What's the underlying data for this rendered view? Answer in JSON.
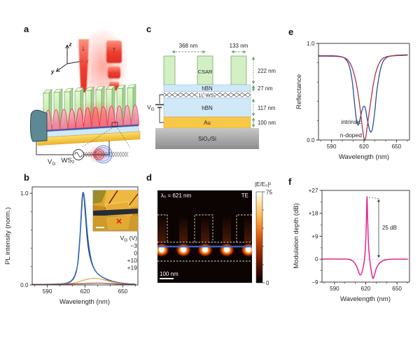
{
  "panels": {
    "a": {
      "label": "a",
      "axes": {
        "z": "z",
        "x": "x",
        "y": "y"
      },
      "icons": {
        "down": "↓",
        "up": "↑"
      },
      "ws2_label": "WS₂",
      "vg": {
        "v": "V",
        "sub": "G"
      }
    },
    "b": {
      "label": "b",
      "legend": {
        "title": {
          "v": "V",
          "sub": "G",
          "rest": " (V)"
        },
        "entries": [
          {
            "label": "−3",
            "color": "#1c2b4f"
          },
          {
            "label": "0",
            "color": "#2f6fc1"
          },
          {
            "label": "+10",
            "color": "#e2a93e"
          },
          {
            "label": "+19",
            "color": "#8e3446"
          }
        ]
      }
    },
    "c": {
      "label": "c",
      "dims": {
        "pitch": "368 nm",
        "width": "133 nm",
        "resist": "222 nm",
        "hbn_top": "27 nm",
        "hbn_bottom": "117 nm",
        "au": "100 nm"
      },
      "layers": {
        "resist": "CSAR",
        "hbn_top": "hBN",
        "ws2": "1L WS₂",
        "hbn_bottom": "hBN",
        "au": "Au",
        "substrate": "SiO₂/Si"
      },
      "vg": {
        "v": "V",
        "sub": "G"
      }
    },
    "d": {
      "label": "d",
      "wavelength_label": "λ₀ = 621 nm",
      "polarization": "TE",
      "scale_bar": "100 nm",
      "colorbar": {
        "label": "|E/E₀|²",
        "max": "75",
        "min": "0"
      }
    },
    "e": {
      "label": "e",
      "curve_labels": {
        "intrinsic": {
          "text": "intrinsic",
          "color": "#2b4c9b"
        },
        "ndoped": {
          "text": "n-doped",
          "color": "#a63748"
        }
      }
    },
    "f": {
      "label": "f",
      "annotation": "25 dB"
    }
  },
  "chart_data": [
    {
      "panel": "b",
      "type": "line",
      "title": "",
      "xlabel": "Wavelength (nm)",
      "ylabel": "PL intensity (norm.)",
      "xlim": [
        578,
        662
      ],
      "ylim": [
        0,
        1.07
      ],
      "xticks": {
        "values": [
          590,
          620,
          650
        ],
        "labels": [
          "590",
          "620",
          "650"
        ]
      },
      "xticks_minor": [
        580,
        600,
        610,
        630,
        640,
        660
      ],
      "yticks": {
        "values": [
          0,
          1
        ],
        "labels": [
          "0.0",
          "1.0"
        ]
      },
      "yticks_minor": [
        0.2,
        0.4,
        0.6,
        0.8
      ],
      "zero_line": false,
      "legend_title": "VG (V)",
      "series": [
        {
          "name": "−3",
          "color": "#1c2b4f",
          "width": 1.2,
          "points": [
            [
              578,
              0.005
            ],
            [
              596,
              0.008
            ],
            [
              604,
              0.015
            ],
            [
              609,
              0.04
            ],
            [
              612,
              0.1
            ],
            [
              614,
              0.22
            ],
            [
              616,
              0.55
            ],
            [
              617.5,
              0.92
            ],
            [
              618.3,
              1.01
            ],
            [
              619.2,
              0.95
            ],
            [
              620.5,
              0.72
            ],
            [
              622,
              0.47
            ],
            [
              624,
              0.3
            ],
            [
              627,
              0.18
            ],
            [
              631,
              0.11
            ],
            [
              636,
              0.07
            ],
            [
              642,
              0.04
            ],
            [
              650,
              0.018
            ],
            [
              660,
              0.008
            ]
          ]
        },
        {
          "name": "0",
          "color": "#2f6fc1",
          "width": 1.4,
          "points": [
            [
              578,
              0.005
            ],
            [
              596,
              0.009
            ],
            [
              604,
              0.017
            ],
            [
              609,
              0.045
            ],
            [
              612,
              0.11
            ],
            [
              614.5,
              0.26
            ],
            [
              616.5,
              0.62
            ],
            [
              618,
              0.96
            ],
            [
              618.9,
              1.0
            ],
            [
              620,
              0.88
            ],
            [
              621.5,
              0.62
            ],
            [
              623.5,
              0.38
            ],
            [
              626,
              0.22
            ],
            [
              629,
              0.14
            ],
            [
              633,
              0.09
            ],
            [
              638,
              0.055
            ],
            [
              644,
              0.03
            ],
            [
              652,
              0.013
            ],
            [
              660,
              0.006
            ]
          ]
        },
        {
          "name": "+10",
          "color": "#e2a93e",
          "width": 1.2,
          "points": [
            [
              578,
              0.004
            ],
            [
              600,
              0.008
            ],
            [
              608,
              0.016
            ],
            [
              614,
              0.03
            ],
            [
              618,
              0.048
            ],
            [
              622,
              0.062
            ],
            [
              626,
              0.072
            ],
            [
              630,
              0.07
            ],
            [
              634,
              0.058
            ],
            [
              639,
              0.04
            ],
            [
              644,
              0.025
            ],
            [
              650,
              0.012
            ],
            [
              656,
              0.006
            ],
            [
              660,
              0.004
            ]
          ]
        },
        {
          "name": "+19",
          "color": "#8e3446",
          "width": 1.1,
          "points": [
            [
              578,
              0.003
            ],
            [
              600,
              0.006
            ],
            [
              610,
              0.01
            ],
            [
              618,
              0.014
            ],
            [
              625,
              0.018
            ],
            [
              632,
              0.02
            ],
            [
              638,
              0.016
            ],
            [
              645,
              0.01
            ],
            [
              652,
              0.006
            ],
            [
              660,
              0.003
            ]
          ]
        }
      ]
    },
    {
      "panel": "e",
      "type": "line",
      "title": "",
      "xlabel": "Wavelength (nm)",
      "ylabel": "Reflectance",
      "xlim": [
        578,
        662
      ],
      "ylim": [
        0,
        1
      ],
      "xticks": {
        "values": [
          590,
          620,
          650
        ],
        "labels": [
          "590",
          "620",
          "650"
        ]
      },
      "xticks_minor": [
        580,
        600,
        610,
        630,
        640,
        660
      ],
      "yticks": {
        "values": [
          0,
          1
        ],
        "labels": [
          "0.0",
          "1.0"
        ]
      },
      "yticks_minor": [
        0.2,
        0.4,
        0.6,
        0.8
      ],
      "zero_line": false,
      "series": [
        {
          "name": "intrinsic",
          "color": "#2b4c9b",
          "width": 1.3,
          "points": [
            [
              578,
              0.872
            ],
            [
              590,
              0.872
            ],
            [
              597,
              0.866
            ],
            [
              602,
              0.848
            ],
            [
              606,
              0.78
            ],
            [
              609,
              0.62
            ],
            [
              611,
              0.41
            ],
            [
              613,
              0.21
            ],
            [
              614.5,
              0.155
            ],
            [
              616,
              0.2
            ],
            [
              618,
              0.3
            ],
            [
              620,
              0.35
            ],
            [
              621.5,
              0.315
            ],
            [
              623,
              0.215
            ],
            [
              625,
              0.11
            ],
            [
              626.5,
              0.082
            ],
            [
              628,
              0.13
            ],
            [
              630,
              0.3
            ],
            [
              632,
              0.52
            ],
            [
              635,
              0.72
            ],
            [
              638,
              0.82
            ],
            [
              642,
              0.86
            ],
            [
              648,
              0.875
            ],
            [
              660,
              0.882
            ]
          ]
        },
        {
          "name": "n-doped",
          "color": "#a63748",
          "width": 1.3,
          "points": [
            [
              578,
              0.868
            ],
            [
              592,
              0.867
            ],
            [
              600,
              0.858
            ],
            [
              605,
              0.828
            ],
            [
              609,
              0.75
            ],
            [
              613,
              0.58
            ],
            [
              616,
              0.36
            ],
            [
              618.5,
              0.13
            ],
            [
              620,
              0.015
            ],
            [
              620.8,
              0.0
            ],
            [
              621.8,
              0.04
            ],
            [
              623,
              0.14
            ],
            [
              626,
              0.38
            ],
            [
              629,
              0.6
            ],
            [
              632,
              0.74
            ],
            [
              636,
              0.83
            ],
            [
              641,
              0.862
            ],
            [
              648,
              0.872
            ],
            [
              660,
              0.878
            ]
          ]
        }
      ]
    },
    {
      "panel": "f",
      "type": "line",
      "title": "",
      "xlabel": "Wavelength (nm)",
      "ylabel": "Modulation depth (dB)",
      "xlim": [
        578,
        662
      ],
      "ylim": [
        -9,
        27
      ],
      "xticks": {
        "values": [
          590,
          620,
          650
        ],
        "labels": [
          "590",
          "620",
          "650"
        ]
      },
      "xticks_minor": [
        580,
        600,
        610,
        630,
        640,
        660
      ],
      "yticks": {
        "values": [
          27,
          18,
          9,
          0,
          -9
        ],
        "labels": [
          "+27",
          "+18",
          "+9",
          "0",
          "−9"
        ]
      },
      "yticks_minor": [
        22.5,
        13.5,
        4.5,
        -4.5
      ],
      "zero_line": true,
      "annotation": {
        "text": "25 dB",
        "peak_nm": 621,
        "peak_db": 24.5
      },
      "series": [
        {
          "name": "modulation",
          "color": "#e2268f",
          "width": 1.5,
          "points": [
            [
              578,
              0.05
            ],
            [
              598,
              0.05
            ],
            [
              604,
              -0.1
            ],
            [
              608,
              -0.9
            ],
            [
              611,
              -2.6
            ],
            [
              613.5,
              -5.4
            ],
            [
              615,
              -6.2
            ],
            [
              616.5,
              -5.0
            ],
            [
              618,
              -2.2
            ],
            [
              619,
              0.8
            ],
            [
              620,
              7
            ],
            [
              620.6,
              15
            ],
            [
              621.2,
              24.5
            ],
            [
              621.8,
              16
            ],
            [
              622.5,
              7
            ],
            [
              623.4,
              1.5
            ],
            [
              624.4,
              -2.2
            ],
            [
              626,
              -6.2
            ],
            [
              627,
              -7.6
            ],
            [
              628.2,
              -6.4
            ],
            [
              630,
              -3.8
            ],
            [
              632.5,
              -1.9
            ],
            [
              635.5,
              -0.8
            ],
            [
              640,
              -0.2
            ],
            [
              647,
              0.0
            ],
            [
              660,
              0.0
            ]
          ]
        }
      ]
    }
  ]
}
